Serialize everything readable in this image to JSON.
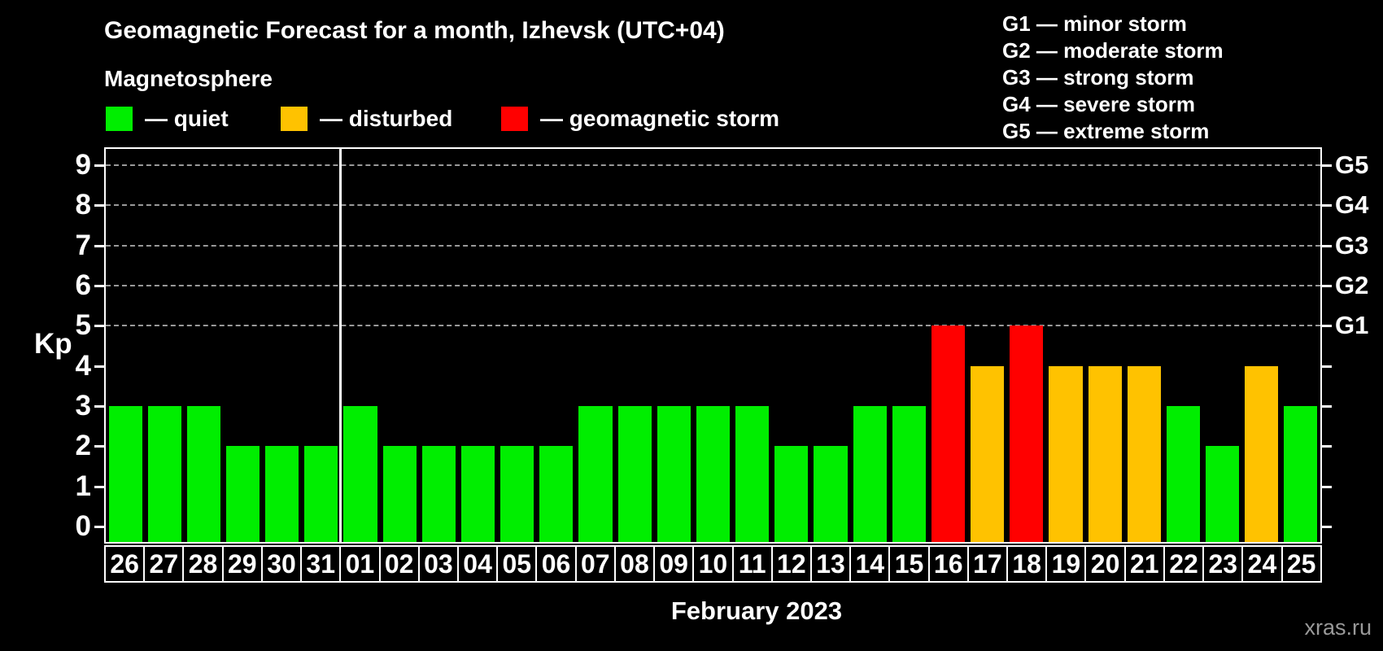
{
  "header": {
    "title": "Geomagnetic Forecast for a month, Izhevsk (UTC+04)",
    "subtitle": "Magnetosphere",
    "legend": [
      {
        "name": "quiet",
        "label": "— quiet",
        "color": "#00ee00"
      },
      {
        "name": "disturbed",
        "label": "— disturbed",
        "color": "#ffc200"
      },
      {
        "name": "storm",
        "label": "— geomagnetic storm",
        "color": "#ff0000"
      }
    ],
    "storm_scale": [
      "G1 — minor storm",
      "G2 — moderate storm",
      "G3 — strong storm",
      "G4 — severe storm",
      "G5 — extreme storm"
    ]
  },
  "chart_data": {
    "type": "bar",
    "title": "Geomagnetic Forecast for a month, Izhevsk (UTC+04)",
    "ylabel": "Kp",
    "xlabel": "February 2023",
    "ylim": [
      0,
      9
    ],
    "yticks": [
      0,
      1,
      2,
      3,
      4,
      5,
      6,
      7,
      8,
      9
    ],
    "gridlines_at": [
      5,
      6,
      7,
      8,
      9
    ],
    "grid": "dashed horizontal at storm levels only",
    "right_axis": {
      "labels": [
        "G1",
        "G2",
        "G3",
        "G4",
        "G5"
      ],
      "at_kp": [
        5,
        6,
        7,
        8,
        9
      ]
    },
    "month_separator_after_index": 5,
    "categories": [
      "26",
      "27",
      "28",
      "29",
      "30",
      "31",
      "01",
      "02",
      "03",
      "04",
      "05",
      "06",
      "07",
      "08",
      "09",
      "10",
      "11",
      "12",
      "13",
      "14",
      "15",
      "16",
      "17",
      "18",
      "19",
      "20",
      "21",
      "22",
      "23",
      "24",
      "25"
    ],
    "series": [
      {
        "name": "Kp forecast",
        "values": [
          3,
          3,
          3,
          2,
          2,
          2,
          3,
          2,
          2,
          2,
          2,
          2,
          3,
          3,
          3,
          3,
          3,
          2,
          2,
          3,
          3,
          5,
          4,
          5,
          4,
          4,
          4,
          3,
          2,
          4,
          3
        ]
      }
    ],
    "levels": [
      "quiet",
      "quiet",
      "quiet",
      "quiet",
      "quiet",
      "quiet",
      "quiet",
      "quiet",
      "quiet",
      "quiet",
      "quiet",
      "quiet",
      "quiet",
      "quiet",
      "quiet",
      "quiet",
      "quiet",
      "quiet",
      "quiet",
      "quiet",
      "quiet",
      "storm",
      "disturbed",
      "storm",
      "disturbed",
      "disturbed",
      "disturbed",
      "quiet",
      "quiet",
      "disturbed",
      "quiet"
    ],
    "level_colors": {
      "quiet": "#00ee00",
      "disturbed": "#ffc200",
      "storm": "#ff0000"
    }
  },
  "footer": {
    "axis_title": "February 2023",
    "watermark": "xras.ru"
  }
}
